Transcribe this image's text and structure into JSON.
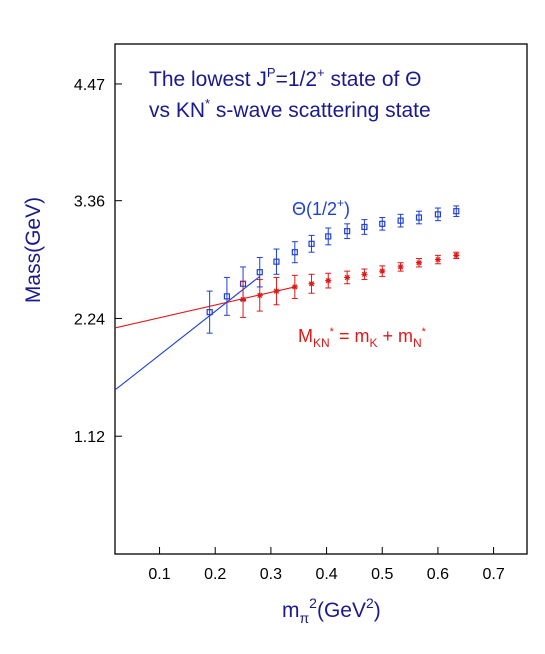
{
  "chart_data": {
    "type": "scatter",
    "title": {
      "line1_a": "The lowest J",
      "line1_sup": "P",
      "line1_b": "=1/2",
      "line1_sup2": "+",
      "line1_c": " state of Θ",
      "line2_a": "vs  KN",
      "line2_sup": "*",
      "line2_b": " s-wave scattering state"
    },
    "xlabel": {
      "base": "m",
      "sub": "π",
      "sup": "2",
      "rest": "(GeV",
      "sup2": "2",
      "end": ")"
    },
    "ylabel": "Mass(GeV)",
    "xlim": [
      0.02,
      0.76
    ],
    "ylim": [
      0.0,
      4.85
    ],
    "xticks": [
      0.1,
      0.2,
      0.3,
      0.4,
      0.5,
      0.6,
      0.7
    ],
    "xtick_labels": [
      "0.1",
      "0.2",
      "0.3",
      "0.4",
      "0.5",
      "0.6",
      "0.7"
    ],
    "yticks": [
      1.12,
      2.24,
      3.36,
      4.47
    ],
    "ytick_labels": [
      "1.12",
      "2.24",
      "3.36",
      "4.47"
    ],
    "grid": false,
    "series": [
      {
        "name_parts": {
          "a": "Θ(1/2",
          "sup": "+",
          "b": ")"
        },
        "color": "#1f3fd6",
        "marker": "square",
        "x": [
          0.19,
          0.221,
          0.25,
          0.28,
          0.31,
          0.343,
          0.373,
          0.403,
          0.437,
          0.468,
          0.5,
          0.533,
          0.566,
          0.6,
          0.633
        ],
        "y": [
          2.3,
          2.45,
          2.57,
          2.68,
          2.78,
          2.87,
          2.95,
          3.02,
          3.07,
          3.11,
          3.14,
          3.17,
          3.2,
          3.23,
          3.26
        ],
        "err": [
          0.2,
          0.18,
          0.16,
          0.14,
          0.12,
          0.1,
          0.08,
          0.08,
          0.07,
          0.07,
          0.06,
          0.06,
          0.06,
          0.06,
          0.05
        ]
      },
      {
        "name_parts": {
          "a": "M",
          "sub1": "KN",
          "sup1": "*",
          "b": " = m",
          "sub2": "K",
          "c": " + m",
          "sub3": "N",
          "sup3": "*"
        },
        "color": "#e01818",
        "marker": "asterisk",
        "x": [
          0.25,
          0.28,
          0.31,
          0.343,
          0.373,
          0.403,
          0.437,
          0.468,
          0.5,
          0.533,
          0.566,
          0.6,
          0.633
        ],
        "y": [
          2.42,
          2.46,
          2.5,
          2.54,
          2.57,
          2.6,
          2.63,
          2.66,
          2.69,
          2.73,
          2.77,
          2.8,
          2.84
        ],
        "err": [
          0.17,
          0.15,
          0.13,
          0.11,
          0.09,
          0.07,
          0.06,
          0.05,
          0.05,
          0.04,
          0.04,
          0.04,
          0.03
        ]
      }
    ],
    "fit_lines": [
      {
        "color": "#1f3fd6",
        "x": [
          0.02,
          0.28
        ],
        "y": [
          1.56,
          2.64
        ]
      },
      {
        "color": "#e01818",
        "x": [
          0.02,
          0.343
        ],
        "y": [
          2.15,
          2.54
        ]
      }
    ]
  }
}
